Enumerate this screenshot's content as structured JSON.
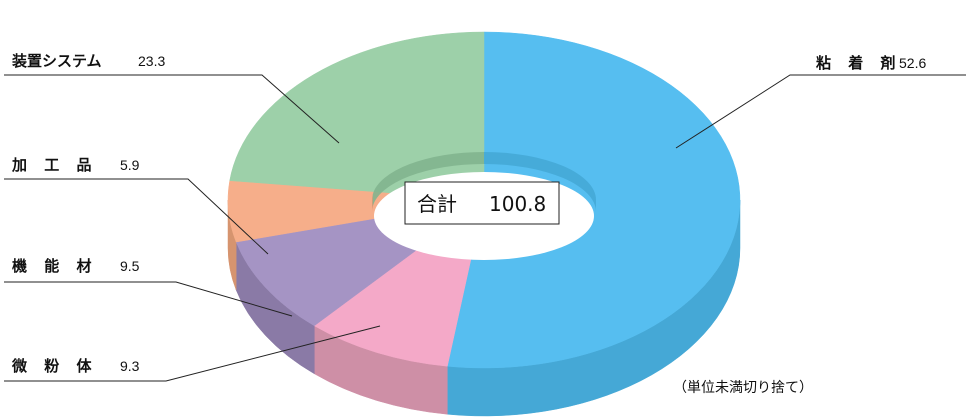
{
  "chart_data": {
    "type": "pie",
    "style": "3d-donut",
    "categories": [
      "粘 着 剤",
      "微 粉 体",
      "機 能 材",
      "加 工 品",
      "装置システム"
    ],
    "values": [
      52.6,
      9.3,
      9.5,
      5.9,
      23.3
    ],
    "value_labels": [
      "52.6",
      "9.3",
      "9.5",
      "5.9",
      "23.3"
    ],
    "colors": [
      "#56BEF0",
      "#F4A9C8",
      "#A594C4",
      "#F6AE8A",
      "#9DD0A9"
    ],
    "side_colors": [
      "#45A8D6",
      "#CE8FA6",
      "#8A7AA6",
      "#D6946F",
      "#82B48E"
    ],
    "center_label": "合計",
    "center_value": "100.8",
    "note": "（単位未満切り捨て）",
    "legend": "none"
  }
}
